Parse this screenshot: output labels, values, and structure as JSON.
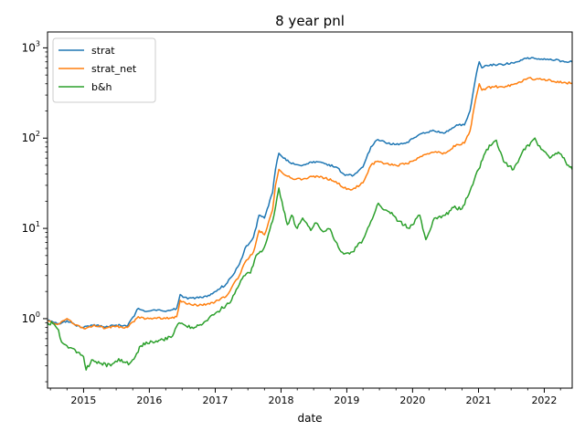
{
  "chart_data": {
    "type": "line",
    "title": "8 year pnl",
    "xlabel": "date",
    "ylabel": "",
    "y_scale": "log",
    "ylim": [
      0.17,
      1500
    ],
    "xlim": [
      "2014-06-15",
      "2022-06-05"
    ],
    "grid": false,
    "legend_position": "top-left",
    "x_ticks": [
      "2015",
      "2016",
      "2017",
      "2018",
      "2019",
      "2020",
      "2021",
      "2022"
    ],
    "y_ticks": [
      {
        "base": "10",
        "exp": "0"
      },
      {
        "base": "10",
        "exp": "1"
      },
      {
        "base": "10",
        "exp": "2"
      },
      {
        "base": "10",
        "exp": "3"
      }
    ],
    "series": [
      {
        "name": "strat",
        "color": "#1f77b4",
        "points": [
          [
            "2014-06-15",
            0.95
          ],
          [
            "2014-07-15",
            0.92
          ],
          [
            "2014-08-15",
            0.88
          ],
          [
            "2014-10-01",
            0.95
          ],
          [
            "2014-11-15",
            0.85
          ],
          [
            "2015-01-01",
            0.8
          ],
          [
            "2015-03-01",
            0.86
          ],
          [
            "2015-05-01",
            0.8
          ],
          [
            "2015-07-01",
            0.85
          ],
          [
            "2015-09-01",
            0.82
          ],
          [
            "2015-11-01",
            1.3
          ],
          [
            "2015-12-15",
            1.2
          ],
          [
            "2016-02-01",
            1.25
          ],
          [
            "2016-04-01",
            1.2
          ],
          [
            "2016-06-01",
            1.3
          ],
          [
            "2016-06-20",
            1.85
          ],
          [
            "2016-08-01",
            1.65
          ],
          [
            "2016-10-01",
            1.7
          ],
          [
            "2016-12-01",
            1.8
          ],
          [
            "2017-01-15",
            2.1
          ],
          [
            "2017-03-01",
            2.4
          ],
          [
            "2017-04-01",
            2.9
          ],
          [
            "2017-05-15",
            4.0
          ],
          [
            "2017-06-15",
            6.0
          ],
          [
            "2017-08-01",
            8.0
          ],
          [
            "2017-09-01",
            14.0
          ],
          [
            "2017-10-01",
            13.0
          ],
          [
            "2017-11-15",
            25.0
          ],
          [
            "2017-12-01",
            45.0
          ],
          [
            "2017-12-20",
            68.0
          ],
          [
            "2018-01-15",
            60.0
          ],
          [
            "2018-03-01",
            52.0
          ],
          [
            "2018-05-01",
            50.0
          ],
          [
            "2018-07-01",
            55.0
          ],
          [
            "2018-09-01",
            52.0
          ],
          [
            "2018-11-01",
            48.0
          ],
          [
            "2018-12-15",
            40.0
          ],
          [
            "2019-02-01",
            38.0
          ],
          [
            "2019-04-01",
            48.0
          ],
          [
            "2019-05-15",
            80.0
          ],
          [
            "2019-06-15",
            95.0
          ],
          [
            "2019-08-01",
            90.0
          ],
          [
            "2019-10-01",
            85.0
          ],
          [
            "2019-12-01",
            90.0
          ],
          [
            "2020-03-01",
            115.0
          ],
          [
            "2020-05-01",
            120.0
          ],
          [
            "2020-07-01",
            115.0
          ],
          [
            "2020-09-01",
            140.0
          ],
          [
            "2020-10-15",
            140.0
          ],
          [
            "2020-11-15",
            200.0
          ],
          [
            "2020-12-15",
            450.0
          ],
          [
            "2021-01-05",
            700.0
          ],
          [
            "2021-01-20",
            600.0
          ],
          [
            "2021-02-15",
            640.0
          ],
          [
            "2021-04-01",
            650.0
          ],
          [
            "2021-06-01",
            660.0
          ],
          [
            "2021-08-01",
            700.0
          ],
          [
            "2021-10-01",
            780.0
          ],
          [
            "2021-11-15",
            760.0
          ],
          [
            "2022-01-01",
            760.0
          ],
          [
            "2022-03-01",
            730.0
          ],
          [
            "2022-05-01",
            700.0
          ],
          [
            "2022-06-05",
            700.0
          ]
        ]
      },
      {
        "name": "strat_net",
        "color": "#ff7f0e",
        "points": [
          [
            "2014-06-15",
            0.95
          ],
          [
            "2014-07-15",
            0.9
          ],
          [
            "2014-08-15",
            0.87
          ],
          [
            "2014-10-01",
            1.0
          ],
          [
            "2014-11-15",
            0.85
          ],
          [
            "2015-01-01",
            0.78
          ],
          [
            "2015-03-01",
            0.85
          ],
          [
            "2015-05-01",
            0.78
          ],
          [
            "2015-07-01",
            0.82
          ],
          [
            "2015-09-01",
            0.8
          ],
          [
            "2015-11-01",
            1.05
          ],
          [
            "2015-12-15",
            1.0
          ],
          [
            "2016-02-01",
            1.02
          ],
          [
            "2016-04-01",
            1.0
          ],
          [
            "2016-06-01",
            1.05
          ],
          [
            "2016-06-20",
            1.6
          ],
          [
            "2016-08-01",
            1.45
          ],
          [
            "2016-10-01",
            1.4
          ],
          [
            "2016-12-01",
            1.45
          ],
          [
            "2017-01-15",
            1.6
          ],
          [
            "2017-03-01",
            1.75
          ],
          [
            "2017-04-01",
            2.2
          ],
          [
            "2017-05-15",
            3.0
          ],
          [
            "2017-06-15",
            4.2
          ],
          [
            "2017-08-01",
            5.5
          ],
          [
            "2017-09-01",
            9.5
          ],
          [
            "2017-10-01",
            8.5
          ],
          [
            "2017-11-15",
            16.0
          ],
          [
            "2017-12-01",
            30.0
          ],
          [
            "2017-12-20",
            45.0
          ],
          [
            "2018-01-15",
            40.0
          ],
          [
            "2018-03-01",
            36.0
          ],
          [
            "2018-05-01",
            35.0
          ],
          [
            "2018-07-01",
            38.0
          ],
          [
            "2018-09-01",
            36.0
          ],
          [
            "2018-11-01",
            33.0
          ],
          [
            "2018-12-15",
            28.0
          ],
          [
            "2019-02-01",
            27.0
          ],
          [
            "2019-04-01",
            32.0
          ],
          [
            "2019-05-15",
            50.0
          ],
          [
            "2019-06-15",
            55.0
          ],
          [
            "2019-08-01",
            52.0
          ],
          [
            "2019-10-01",
            50.0
          ],
          [
            "2019-12-01",
            52.0
          ],
          [
            "2020-03-01",
            65.0
          ],
          [
            "2020-05-01",
            70.0
          ],
          [
            "2020-07-01",
            68.0
          ],
          [
            "2020-09-01",
            85.0
          ],
          [
            "2020-10-15",
            88.0
          ],
          [
            "2020-11-15",
            120.0
          ],
          [
            "2020-12-15",
            260.0
          ],
          [
            "2021-01-05",
            400.0
          ],
          [
            "2021-01-20",
            340.0
          ],
          [
            "2021-02-15",
            360.0
          ],
          [
            "2021-04-01",
            370.0
          ],
          [
            "2021-06-01",
            375.0
          ],
          [
            "2021-08-01",
            400.0
          ],
          [
            "2021-10-01",
            460.0
          ],
          [
            "2021-11-15",
            450.0
          ],
          [
            "2022-01-01",
            450.0
          ],
          [
            "2022-03-01",
            420.0
          ],
          [
            "2022-05-01",
            410.0
          ],
          [
            "2022-06-05",
            405.0
          ]
        ]
      },
      {
        "name": "b&h",
        "color": "#2ca02c",
        "points": [
          [
            "2014-06-15",
            0.9
          ],
          [
            "2014-07-15",
            0.88
          ],
          [
            "2014-08-15",
            0.75
          ],
          [
            "2014-09-01",
            0.55
          ],
          [
            "2014-10-01",
            0.5
          ],
          [
            "2014-11-15",
            0.45
          ],
          [
            "2015-01-01",
            0.38
          ],
          [
            "2015-01-15",
            0.27
          ],
          [
            "2015-02-15",
            0.35
          ],
          [
            "2015-04-01",
            0.32
          ],
          [
            "2015-06-01",
            0.3
          ],
          [
            "2015-07-15",
            0.36
          ],
          [
            "2015-08-15",
            0.33
          ],
          [
            "2015-09-15",
            0.32
          ],
          [
            "2015-10-15",
            0.38
          ],
          [
            "2015-11-15",
            0.5
          ],
          [
            "2015-12-15",
            0.55
          ],
          [
            "2016-02-01",
            0.55
          ],
          [
            "2016-03-01",
            0.58
          ],
          [
            "2016-05-01",
            0.62
          ],
          [
            "2016-06-15",
            0.9
          ],
          [
            "2016-07-15",
            0.85
          ],
          [
            "2016-09-01",
            0.78
          ],
          [
            "2016-11-01",
            0.92
          ],
          [
            "2016-12-15",
            1.1
          ],
          [
            "2017-01-15",
            1.2
          ],
          [
            "2017-03-01",
            1.4
          ],
          [
            "2017-04-01",
            1.6
          ],
          [
            "2017-05-15",
            2.4
          ],
          [
            "2017-06-15",
            3.0
          ],
          [
            "2017-07-15",
            3.2
          ],
          [
            "2017-08-15",
            5.0
          ],
          [
            "2017-09-15",
            5.5
          ],
          [
            "2017-10-15",
            7.5
          ],
          [
            "2017-11-15",
            12.0
          ],
          [
            "2017-12-10",
            22.0
          ],
          [
            "2017-12-20",
            28.0
          ],
          [
            "2018-01-15",
            16.0
          ],
          [
            "2018-02-05",
            11.0
          ],
          [
            "2018-03-01",
            14.0
          ],
          [
            "2018-04-01",
            10.0
          ],
          [
            "2018-05-01",
            13.0
          ],
          [
            "2018-06-15",
            9.5
          ],
          [
            "2018-07-15",
            11.5
          ],
          [
            "2018-08-15",
            9.5
          ],
          [
            "2018-10-01",
            9.8
          ],
          [
            "2018-11-15",
            6.2
          ],
          [
            "2018-12-15",
            5.2
          ],
          [
            "2019-02-01",
            5.5
          ],
          [
            "2019-04-01",
            7.5
          ],
          [
            "2019-05-15",
            12.0
          ],
          [
            "2019-06-25",
            19.0
          ],
          [
            "2019-08-01",
            16.0
          ],
          [
            "2019-09-15",
            14.0
          ],
          [
            "2019-10-15",
            12.0
          ],
          [
            "2019-12-15",
            10.0
          ],
          [
            "2020-02-10",
            14.0
          ],
          [
            "2020-03-15",
            7.5
          ],
          [
            "2020-05-01",
            13.0
          ],
          [
            "2020-07-01",
            14.0
          ],
          [
            "2020-08-15",
            17.0
          ],
          [
            "2020-10-01",
            16.5
          ],
          [
            "2020-11-15",
            26.0
          ],
          [
            "2021-01-01",
            45.0
          ],
          [
            "2021-02-15",
            75.0
          ],
          [
            "2021-04-10",
            95.0
          ],
          [
            "2021-05-20",
            55.0
          ],
          [
            "2021-07-15",
            45.0
          ],
          [
            "2021-09-01",
            70.0
          ],
          [
            "2021-11-10",
            100.0
          ],
          [
            "2021-12-15",
            75.0
          ],
          [
            "2022-02-01",
            60.0
          ],
          [
            "2022-03-20",
            70.0
          ],
          [
            "2022-05-15",
            50.0
          ],
          [
            "2022-06-05",
            45.0
          ]
        ]
      }
    ]
  }
}
